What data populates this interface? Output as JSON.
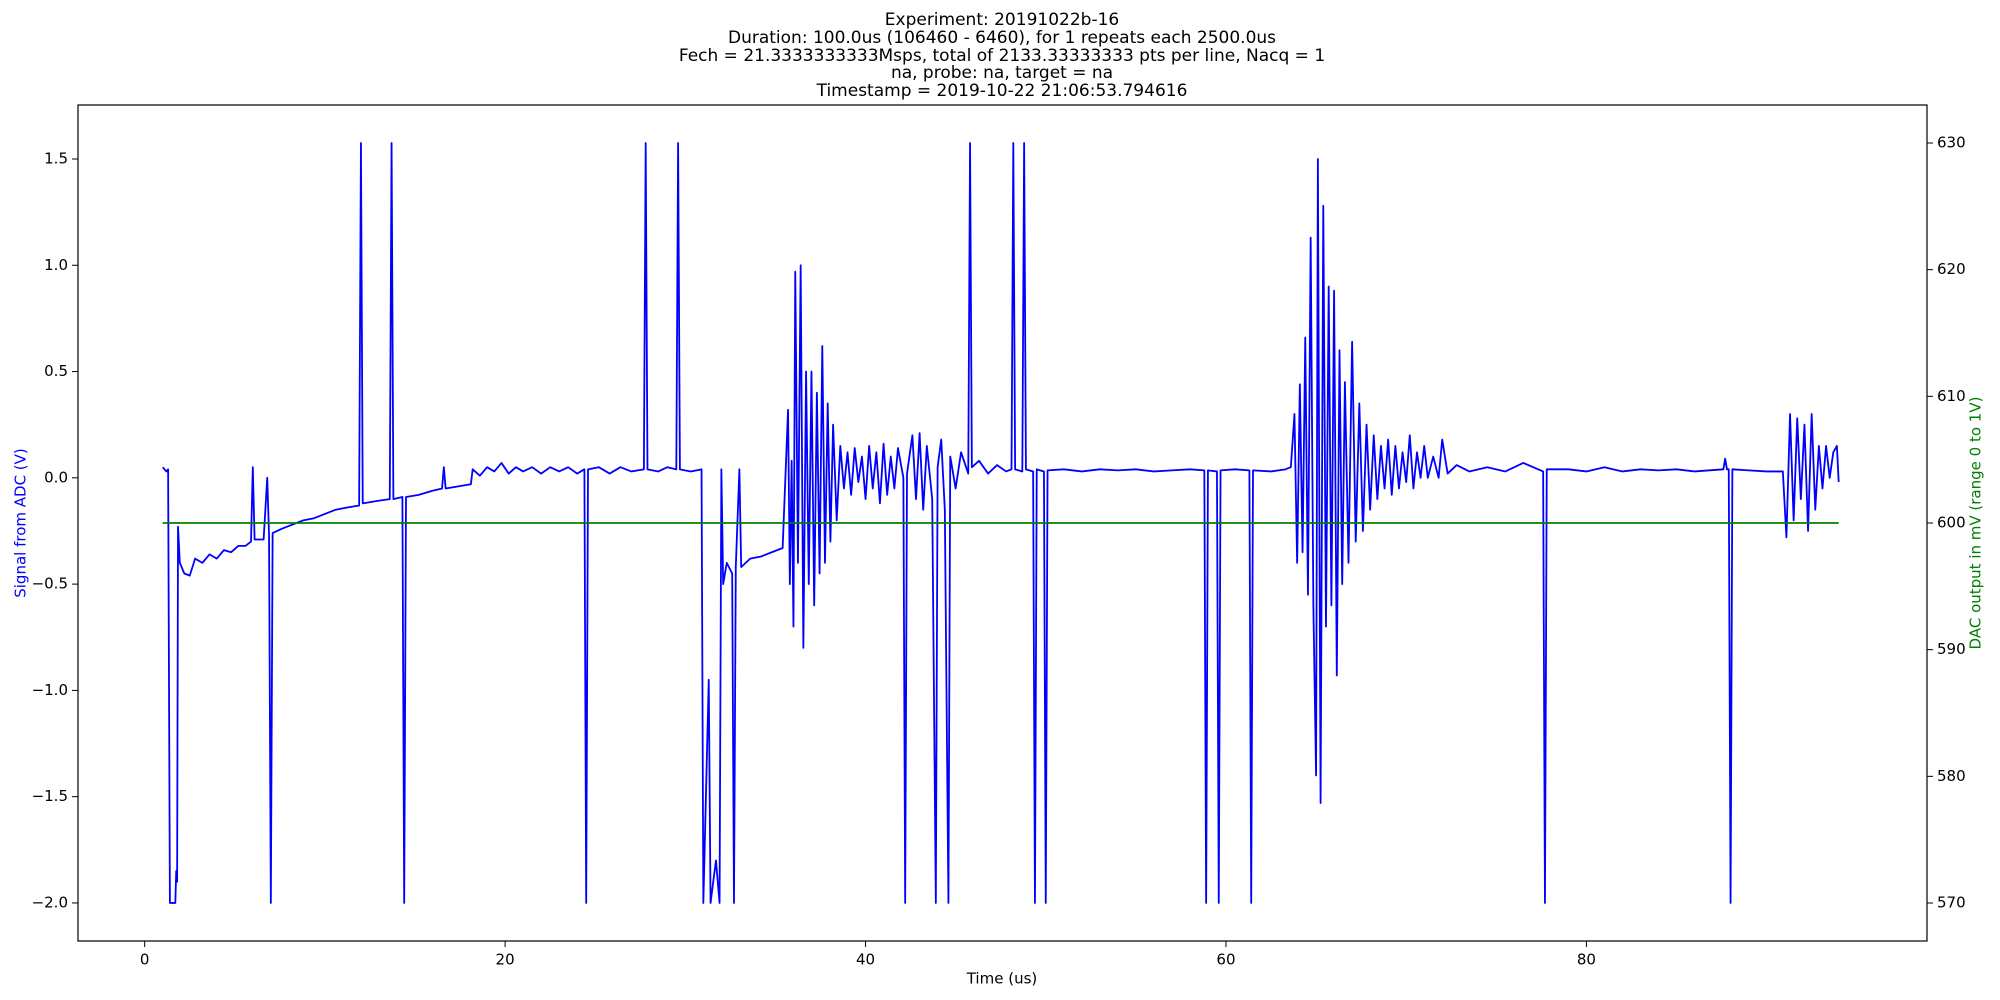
{
  "chart_data": {
    "type": "line",
    "title": [
      "Experiment: 20191022b-16",
      "Duration: 100.0us (106460 - 6460), for 1 repeats each 2500.0us",
      "Fech = 21.3333333333Msps, total of 2133.33333333 pts per line, Nacq = 1",
      "na, probe: na, target = na",
      "Timestamp = 2019-10-22 21:06:53.794616"
    ],
    "xlabel": "Time (us)",
    "ylabel": "Signal from ADC (V)",
    "y2label": "DAC output in mV (range 0 to 1V)",
    "ylabel_color": "#0000ff",
    "y2label_color": "#008000",
    "xlim": [
      -3.7,
      98.9
    ],
    "xticks": [
      0,
      20,
      40,
      60,
      80
    ],
    "ylim": [
      -2.179,
      1.754
    ],
    "yticks": [
      {
        "value": -2.0,
        "label": "−2.0"
      },
      {
        "value": -1.5,
        "label": "−1.5"
      },
      {
        "value": -1.0,
        "label": "−1.0"
      },
      {
        "value": -0.5,
        "label": "−0.5"
      },
      {
        "value": 0,
        "label": "0.0"
      },
      0.5,
      {
        "value": 1.0,
        "label": "1.0"
      },
      1.5
    ],
    "y2lim": [
      567,
      633
    ],
    "y2ticks": [
      570,
      580,
      590,
      600,
      610,
      620,
      630
    ],
    "series": [
      {
        "color": "#0000ff",
        "axis": "y",
        "x": [
          1.0,
          1.2,
          1.3,
          1.4,
          1.7,
          1.75,
          1.8,
          1.85,
          1.95,
          2.2,
          2.5,
          2.8,
          3.2,
          3.6,
          4.0,
          4.4,
          4.8,
          5.2,
          5.6,
          5.9,
          6.0,
          6.1,
          6.6,
          6.8,
          6.9,
          7.0,
          7.1,
          7.6,
          8.2,
          8.8,
          9.4,
          10.0,
          10.6,
          11.2,
          11.9,
          12.0,
          12.1,
          12.8,
          13.6,
          13.7,
          13.8,
          14.3,
          14.4,
          14.5,
          15.2,
          16.0,
          16.5,
          16.6,
          16.7,
          17.4,
          18.1,
          18.2,
          18.6,
          19.0,
          19.4,
          19.8,
          20.2,
          20.6,
          21.0,
          21.5,
          22.0,
          22.5,
          23.0,
          23.5,
          24.0,
          24.4,
          24.5,
          24.6,
          25.2,
          25.8,
          26.4,
          27.0,
          27.7,
          27.8,
          27.9,
          28.5,
          29.0,
          29.5,
          29.6,
          29.7,
          30.3,
          30.9,
          31.0,
          31.3,
          31.4,
          31.7,
          31.9,
          32.0,
          32.1,
          32.3,
          32.6,
          32.7,
          32.8,
          33.0,
          33.1,
          33.6,
          34.2,
          34.8,
          35.4,
          35.7,
          35.8,
          35.9,
          36.0,
          36.1,
          36.25,
          36.4,
          36.55,
          36.7,
          36.85,
          37.0,
          37.15,
          37.3,
          37.45,
          37.6,
          37.75,
          37.9,
          38.05,
          38.2,
          38.4,
          38.6,
          38.8,
          39.0,
          39.2,
          39.4,
          39.6,
          39.8,
          40.0,
          40.2,
          40.4,
          40.6,
          40.8,
          41.0,
          41.2,
          41.4,
          41.6,
          41.8,
          42.1,
          42.2,
          42.3,
          42.6,
          42.8,
          43.0,
          43.2,
          43.4,
          43.7,
          43.9,
          44.0,
          44.2,
          44.4,
          44.6,
          44.7,
          45.0,
          45.3,
          45.7,
          45.8,
          45.9,
          46.3,
          46.8,
          47.3,
          47.8,
          48.1,
          48.2,
          48.3,
          48.7,
          48.8,
          48.9,
          49.3,
          49.4,
          49.5,
          49.9,
          50.0,
          50.1,
          51,
          52,
          53,
          54,
          55,
          56,
          57,
          58,
          58.8,
          58.9,
          59.0,
          59.5,
          59.6,
          59.7,
          60.5,
          61.3,
          61.4,
          61.5,
          62.5,
          63.3,
          63.6,
          63.8,
          63.95,
          64.1,
          64.25,
          64.4,
          64.55,
          64.7,
          64.85,
          65.0,
          65.1,
          65.25,
          65.4,
          65.55,
          65.7,
          65.85,
          66.0,
          66.15,
          66.3,
          66.45,
          66.6,
          66.8,
          67.0,
          67.2,
          67.4,
          67.6,
          67.8,
          68.0,
          68.2,
          68.4,
          68.6,
          68.8,
          69.0,
          69.2,
          69.4,
          69.6,
          69.8,
          70.0,
          70.2,
          70.4,
          70.6,
          70.8,
          71.0,
          71.2,
          71.5,
          71.8,
          72.0,
          72.3,
          72.8,
          73.5,
          74.5,
          75.5,
          76.5,
          77.6,
          77.7,
          77.8,
          79,
          80,
          81,
          82,
          83,
          84,
          85,
          86,
          87.6,
          87.7,
          87.8,
          87.9,
          88.0,
          88.1,
          89,
          90,
          90.9,
          91.1,
          91.3,
          91.5,
          91.7,
          91.9,
          92.1,
          92.3,
          92.5,
          92.7,
          92.9,
          93.1,
          93.3,
          93.5,
          93.7,
          93.9,
          94.0
        ],
        "values": [
          0.05,
          0.03,
          0.04,
          -2.0,
          -2.0,
          -1.85,
          -1.9,
          -0.23,
          -0.4,
          -0.45,
          -0.46,
          -0.38,
          -0.4,
          -0.36,
          -0.38,
          -0.34,
          -0.35,
          -0.32,
          -0.32,
          -0.3,
          0.05,
          -0.29,
          -0.29,
          0.0,
          -0.27,
          -2.0,
          -0.26,
          -0.24,
          -0.22,
          -0.2,
          -0.19,
          -0.17,
          -0.15,
          -0.14,
          -0.13,
          1.575,
          -0.12,
          -0.11,
          -0.1,
          1.575,
          -0.1,
          -0.09,
          -2.0,
          -0.09,
          -0.08,
          -0.06,
          -0.05,
          0.05,
          -0.05,
          -0.04,
          -0.03,
          0.04,
          0.01,
          0.05,
          0.03,
          0.07,
          0.02,
          0.05,
          0.03,
          0.05,
          0.02,
          0.05,
          0.03,
          0.05,
          0.02,
          0.04,
          -2.0,
          0.04,
          0.05,
          0.02,
          0.05,
          0.03,
          0.04,
          1.575,
          0.04,
          0.03,
          0.05,
          0.04,
          1.575,
          0.04,
          0.03,
          0.04,
          -2.0,
          -0.95,
          -2.0,
          -1.8,
          -2.0,
          0.04,
          -0.5,
          -0.4,
          -0.45,
          -2.0,
          -0.42,
          0.04,
          -0.42,
          -0.38,
          -0.37,
          -0.35,
          -0.33,
          0.32,
          -0.5,
          0.08,
          -0.7,
          0.97,
          -0.4,
          1.0,
          -0.8,
          0.5,
          -0.5,
          0.5,
          -0.6,
          0.4,
          -0.45,
          0.62,
          -0.4,
          0.35,
          -0.3,
          0.25,
          -0.2,
          0.15,
          -0.05,
          0.12,
          -0.08,
          0.14,
          -0.02,
          0.1,
          -0.1,
          0.15,
          -0.05,
          0.12,
          -0.12,
          0.16,
          -0.08,
          0.1,
          -0.05,
          0.14,
          0.0,
          -2.0,
          0.02,
          0.2,
          -0.1,
          0.21,
          -0.15,
          0.15,
          -0.1,
          -2.0,
          0.05,
          0.18,
          -0.15,
          -2.0,
          0.1,
          -0.05,
          0.12,
          0.02,
          1.575,
          0.05,
          0.08,
          0.02,
          0.06,
          0.03,
          0.04,
          1.575,
          0.04,
          0.03,
          1.575,
          0.04,
          0.03,
          -2.0,
          0.04,
          0.03,
          -2.0,
          0.035,
          0.04,
          0.03,
          0.04,
          0.035,
          0.04,
          0.03,
          0.035,
          0.04,
          0.035,
          -2.0,
          0.035,
          0.03,
          -2.0,
          0.035,
          0.04,
          0.035,
          -2.0,
          0.035,
          0.03,
          0.04,
          0.05,
          0.3,
          -0.4,
          0.44,
          -0.35,
          0.66,
          -0.55,
          1.13,
          -0.6,
          -1.4,
          1.5,
          -1.53,
          1.28,
          -0.7,
          0.9,
          -0.6,
          0.88,
          -0.93,
          0.6,
          -0.5,
          0.45,
          -0.4,
          0.64,
          -0.3,
          0.35,
          -0.25,
          0.25,
          -0.15,
          0.2,
          -0.1,
          0.15,
          -0.05,
          0.18,
          -0.08,
          0.15,
          -0.05,
          0.12,
          -0.02,
          0.2,
          -0.05,
          0.12,
          0.0,
          0.15,
          0.0,
          0.1,
          0.0,
          0.18,
          0.02,
          0.06,
          0.03,
          0.05,
          0.03,
          0.07,
          0.03,
          -2.0,
          0.04,
          0.04,
          0.03,
          0.05,
          0.03,
          0.04,
          0.035,
          0.04,
          0.03,
          0.04,
          0.09,
          0.04,
          0.04,
          -2.0,
          0.04,
          0.035,
          0.03,
          0.03,
          -0.28,
          0.3,
          -0.2,
          0.28,
          -0.1,
          0.25,
          -0.25,
          0.3,
          -0.15,
          0.15,
          -0.05,
          0.15,
          0.0,
          0.12,
          0.15,
          -0.02
        ]
      },
      {
        "color": "#008000",
        "axis": "y2",
        "x": [
          1.0,
          94.0
        ],
        "values": [
          600,
          600
        ]
      }
    ]
  }
}
